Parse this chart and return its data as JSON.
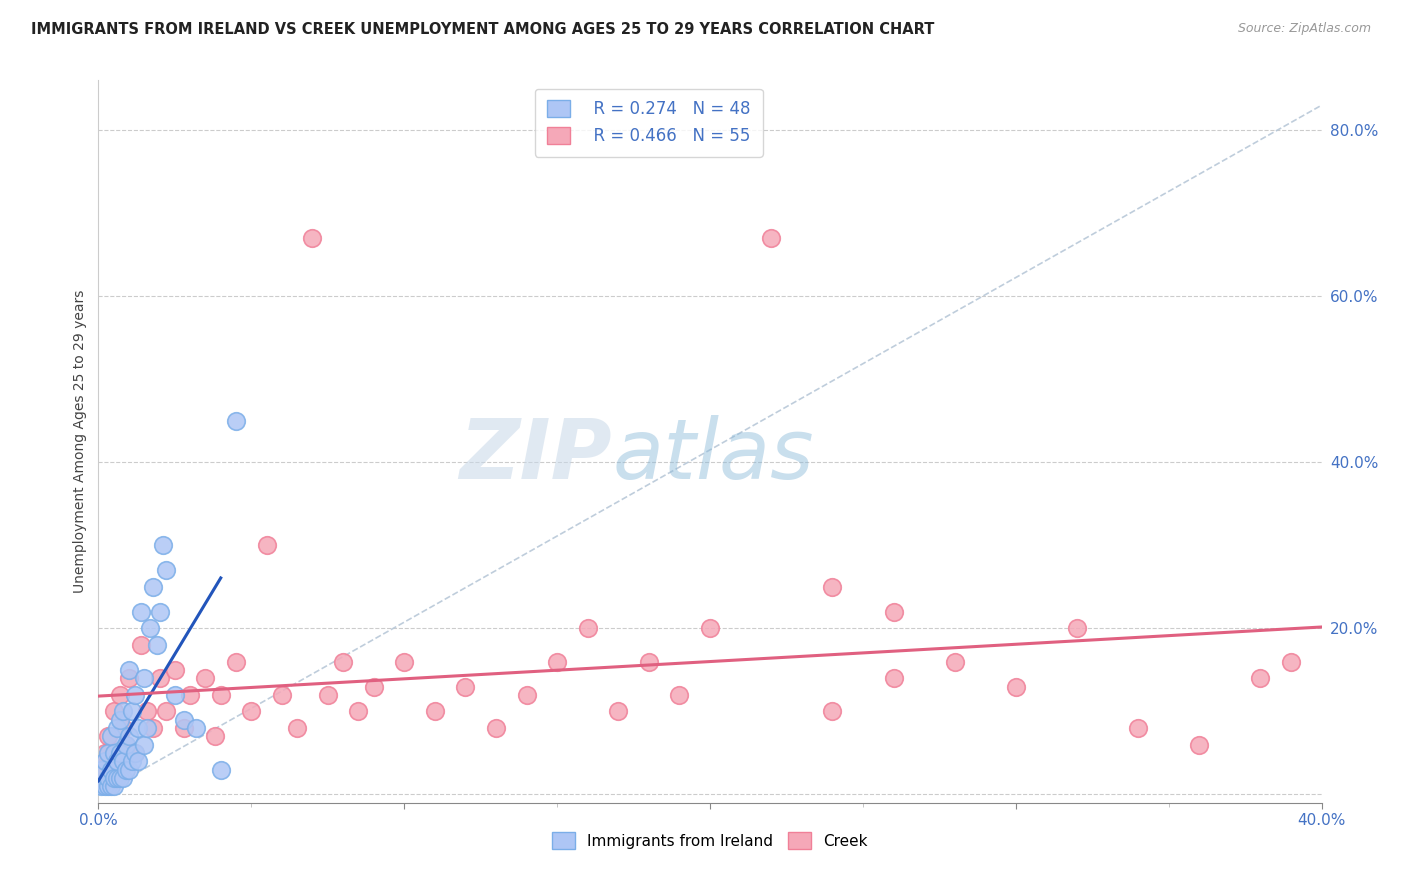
{
  "title": "IMMIGRANTS FROM IRELAND VS CREEK UNEMPLOYMENT AMONG AGES 25 TO 29 YEARS CORRELATION CHART",
  "source": "Source: ZipAtlas.com",
  "ylabel": "Unemployment Among Ages 25 to 29 years",
  "yticks_labels": [
    "",
    "20.0%",
    "40.0%",
    "60.0%",
    "80.0%"
  ],
  "ytick_vals": [
    0.0,
    0.2,
    0.4,
    0.6,
    0.8
  ],
  "xlim": [
    0.0,
    0.4
  ],
  "ylim": [
    -0.01,
    0.86
  ],
  "watermark_zip": "ZIP",
  "watermark_atlas": "atlas",
  "ireland_color": "#7baee8",
  "ireland_fill": "#aec6f5",
  "creek_color": "#f08098",
  "creek_fill": "#f5a8b8",
  "trendline_ireland_color": "#2255bb",
  "trendline_creek_color": "#e06080",
  "diag_line_color": "#b8c8d8",
  "ireland_points_x": [
    0.001,
    0.001,
    0.002,
    0.002,
    0.003,
    0.003,
    0.003,
    0.004,
    0.004,
    0.004,
    0.005,
    0.005,
    0.005,
    0.006,
    0.006,
    0.006,
    0.007,
    0.007,
    0.007,
    0.008,
    0.008,
    0.008,
    0.009,
    0.009,
    0.01,
    0.01,
    0.01,
    0.011,
    0.011,
    0.012,
    0.012,
    0.013,
    0.013,
    0.014,
    0.015,
    0.015,
    0.016,
    0.017,
    0.018,
    0.019,
    0.02,
    0.021,
    0.022,
    0.025,
    0.028,
    0.032,
    0.04,
    0.045
  ],
  "ireland_points_y": [
    0.01,
    0.03,
    0.01,
    0.04,
    0.01,
    0.02,
    0.05,
    0.01,
    0.03,
    0.07,
    0.01,
    0.02,
    0.05,
    0.02,
    0.04,
    0.08,
    0.02,
    0.05,
    0.09,
    0.02,
    0.04,
    0.1,
    0.03,
    0.06,
    0.03,
    0.07,
    0.15,
    0.04,
    0.1,
    0.05,
    0.12,
    0.04,
    0.08,
    0.22,
    0.06,
    0.14,
    0.08,
    0.2,
    0.25,
    0.18,
    0.22,
    0.3,
    0.27,
    0.12,
    0.09,
    0.08,
    0.03,
    0.45
  ],
  "creek_points_x": [
    0.001,
    0.002,
    0.003,
    0.004,
    0.005,
    0.006,
    0.007,
    0.008,
    0.009,
    0.01,
    0.012,
    0.014,
    0.016,
    0.018,
    0.02,
    0.022,
    0.025,
    0.028,
    0.03,
    0.035,
    0.038,
    0.04,
    0.045,
    0.05,
    0.055,
    0.06,
    0.065,
    0.07,
    0.075,
    0.08,
    0.085,
    0.09,
    0.1,
    0.11,
    0.12,
    0.13,
    0.14,
    0.15,
    0.16,
    0.17,
    0.18,
    0.19,
    0.2,
    0.22,
    0.24,
    0.26,
    0.28,
    0.3,
    0.32,
    0.34,
    0.36,
    0.38,
    0.24,
    0.26,
    0.39
  ],
  "creek_points_y": [
    0.03,
    0.05,
    0.07,
    0.02,
    0.1,
    0.04,
    0.12,
    0.08,
    0.06,
    0.14,
    0.05,
    0.18,
    0.1,
    0.08,
    0.14,
    0.1,
    0.15,
    0.08,
    0.12,
    0.14,
    0.07,
    0.12,
    0.16,
    0.1,
    0.3,
    0.12,
    0.08,
    0.67,
    0.12,
    0.16,
    0.1,
    0.13,
    0.16,
    0.1,
    0.13,
    0.08,
    0.12,
    0.16,
    0.2,
    0.1,
    0.16,
    0.12,
    0.2,
    0.67,
    0.1,
    0.14,
    0.16,
    0.13,
    0.2,
    0.08,
    0.06,
    0.14,
    0.25,
    0.22,
    0.16
  ]
}
